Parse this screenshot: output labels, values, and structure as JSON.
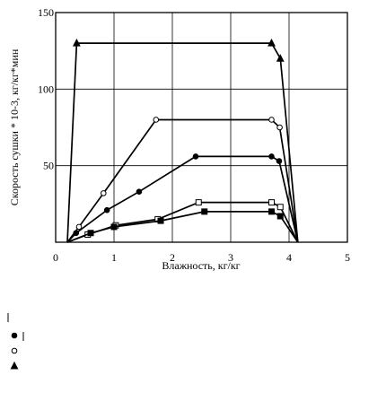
{
  "chart_data": {
    "type": "line",
    "xlabel": "Влажность, кг/кг",
    "ylabel": "Скорость сушки * 10-3, кг/кг*мин",
    "xlim": [
      0,
      5
    ],
    "ylim": [
      0,
      150
    ],
    "x_ticks": [
      "0",
      "1",
      "2",
      "3",
      "4",
      "5"
    ],
    "y_ticks": [
      "50",
      "100",
      "150"
    ],
    "grid": true,
    "series": [
      {
        "marker": "filled-triangle",
        "points": [
          [
            0.2,
            0
          ],
          [
            0.36,
            130
          ],
          [
            3.7,
            130
          ],
          [
            3.85,
            120
          ],
          [
            4.15,
            0
          ]
        ]
      },
      {
        "marker": "open-circle",
        "points": [
          [
            0.2,
            0
          ],
          [
            0.4,
            10
          ],
          [
            0.82,
            32
          ],
          [
            1.72,
            80
          ],
          [
            3.7,
            80
          ],
          [
            3.84,
            75
          ],
          [
            4.15,
            0
          ]
        ]
      },
      {
        "marker": "filled-circle",
        "points": [
          [
            0.2,
            0
          ],
          [
            0.35,
            6
          ],
          [
            0.88,
            21
          ],
          [
            1.43,
            33
          ],
          [
            2.4,
            56
          ],
          [
            3.7,
            56
          ],
          [
            3.83,
            53
          ],
          [
            4.15,
            0
          ]
        ]
      },
      {
        "marker": "open-square",
        "points": [
          [
            0.2,
            0
          ],
          [
            0.55,
            5
          ],
          [
            1.03,
            11
          ],
          [
            1.75,
            15
          ],
          [
            2.45,
            26
          ],
          [
            3.7,
            26
          ],
          [
            3.85,
            23
          ],
          [
            4.15,
            0
          ]
        ]
      },
      {
        "marker": "filled-square",
        "points": [
          [
            0.2,
            0
          ],
          [
            0.6,
            6
          ],
          [
            1.0,
            10
          ],
          [
            1.8,
            14
          ],
          [
            2.55,
            20
          ],
          [
            3.7,
            20
          ],
          [
            3.85,
            17
          ],
          [
            4.15,
            0
          ]
        ]
      }
    ]
  },
  "colors": {
    "line": "#000000",
    "grid": "#000000",
    "background": "#ffffff"
  },
  "legend_markers": [
    "filled-circle",
    "open-circle",
    "filled-triangle"
  ]
}
